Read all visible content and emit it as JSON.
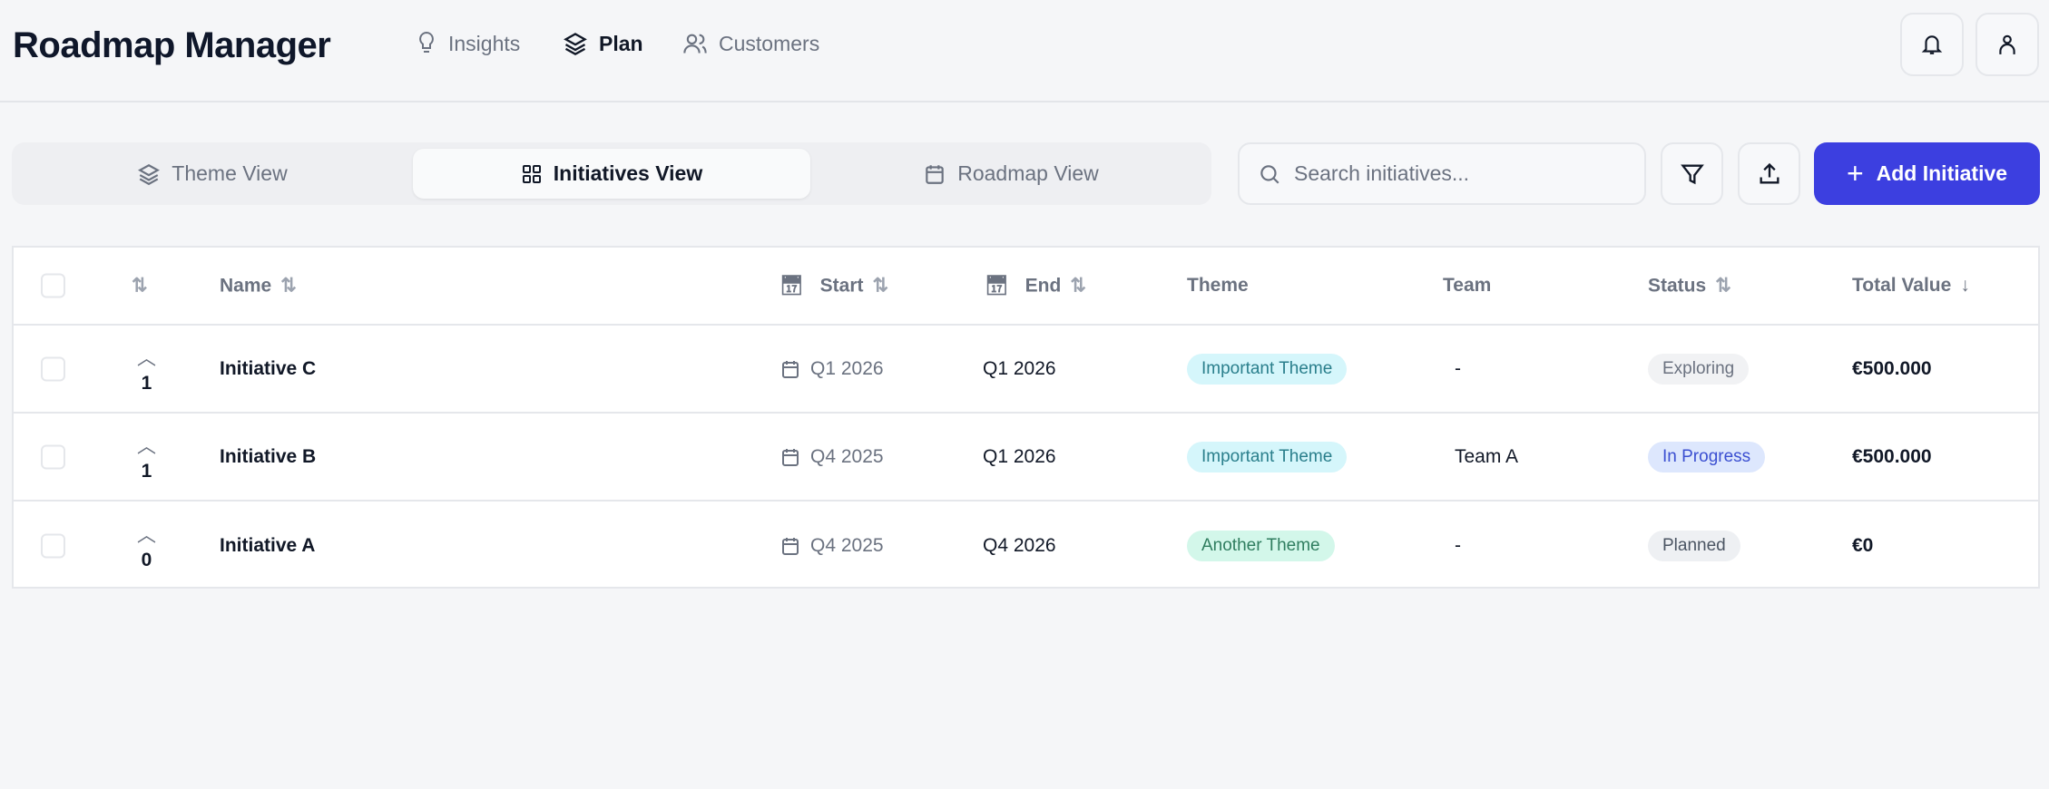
{
  "header": {
    "title": "Roadmap Manager",
    "nav": [
      {
        "label": "Insights",
        "icon": "lightbulb-icon"
      },
      {
        "label": "Plan",
        "icon": "layers-icon",
        "active": true
      },
      {
        "label": "Customers",
        "icon": "users-icon"
      }
    ]
  },
  "toolbar": {
    "views": [
      {
        "label": "Theme View",
        "icon": "layers-icon"
      },
      {
        "label": "Initiatives View",
        "icon": "grid-icon",
        "active": true
      },
      {
        "label": "Roadmap View",
        "icon": "calendar-icon"
      }
    ],
    "search_placeholder": "Search initiatives...",
    "search_value": "",
    "add_label": "Add Initiative"
  },
  "colors": {
    "accent": "#3c3fe0",
    "theme_important_bg": "#d5f6fb",
    "theme_another_bg": "#d3f7ea",
    "status_progress_bg": "#dde7fd"
  },
  "table": {
    "columns": {
      "name": "Name",
      "start": "Start",
      "end": "End",
      "theme": "Theme",
      "team": "Team",
      "status": "Status",
      "total": "Total Value"
    },
    "rows": [
      {
        "votes": "1",
        "name": "Initiative C",
        "start": "Q1 2026",
        "end": "Q1 2026",
        "theme": "Important Theme",
        "team": "-",
        "status": "Exploring",
        "total": "€500.000"
      },
      {
        "votes": "1",
        "name": "Initiative B",
        "start": "Q4 2025",
        "end": "Q1 2026",
        "theme": "Important Theme",
        "team": "Team A",
        "status": "In Progress",
        "total": "€500.000"
      },
      {
        "votes": "0",
        "name": "Initiative A",
        "start": "Q4 2025",
        "end": "Q4 2026",
        "theme": "Another Theme",
        "team": "-",
        "status": "Planned",
        "total": "€0"
      }
    ]
  }
}
